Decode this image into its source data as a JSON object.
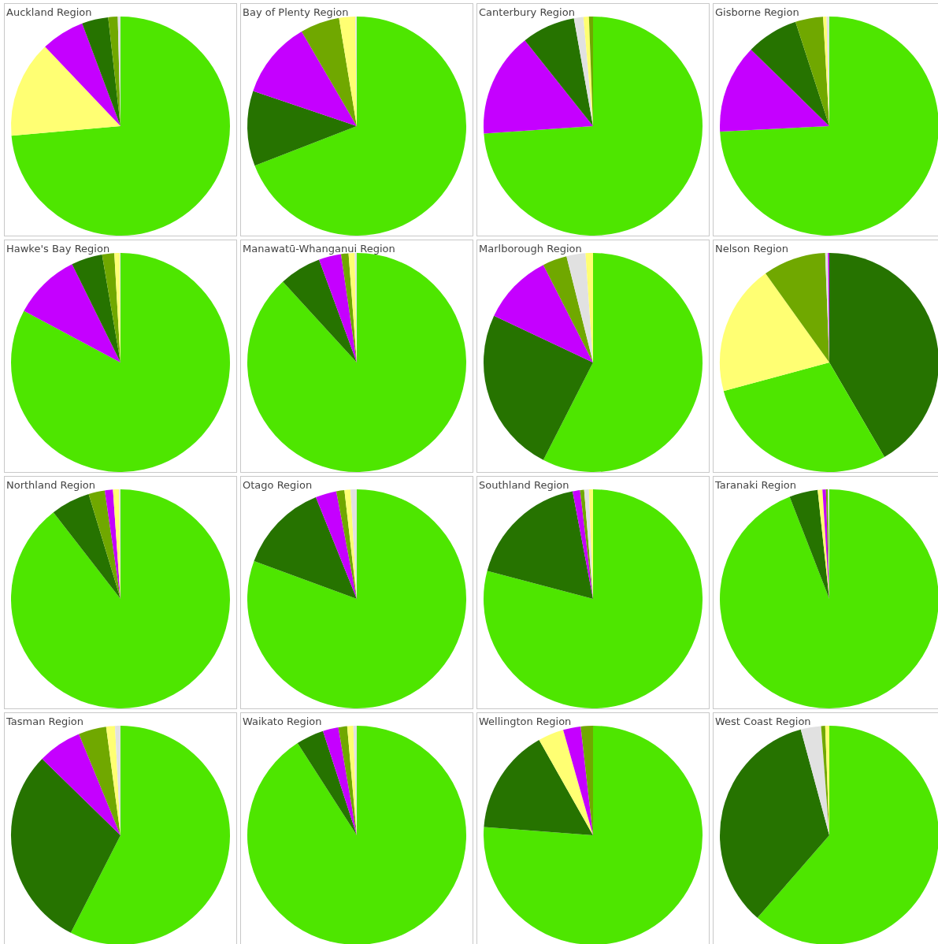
{
  "chart_data": [
    {
      "type": "pie",
      "title": "Auckland Region",
      "categories": [
        null,
        null,
        null,
        null,
        null,
        null
      ],
      "values": [
        73.6,
        14.3,
        6.4,
        3.9,
        1.4,
        0.4
      ],
      "colors": [
        "#4ee600",
        "#ffff73",
        "#c500ff",
        "#267300",
        "#70a800",
        "#e1e1e1"
      ]
    },
    {
      "type": "pie",
      "title": "Bay of Plenty Region",
      "categories": [
        null,
        null,
        null,
        null,
        null,
        null
      ],
      "values": [
        69.1,
        11.1,
        11.4,
        5.8,
        2.4,
        0.2
      ],
      "colors": [
        "#4ee600",
        "#267300",
        "#c500ff",
        "#70a800",
        "#ffff73",
        "#e1e1e1"
      ]
    },
    {
      "type": "pie",
      "title": "Canterbury Region",
      "categories": [
        null,
        null,
        null,
        null,
        null,
        null
      ],
      "values": [
        73.9,
        15.4,
        7.9,
        1.4,
        0.8,
        0.6
      ],
      "colors": [
        "#4ee600",
        "#c500ff",
        "#267300",
        "#e1e1e1",
        "#ffff73",
        "#70a800"
      ]
    },
    {
      "type": "pie",
      "title": "Gisborne Region",
      "categories": [
        null,
        null,
        null,
        null,
        null,
        null
      ],
      "values": [
        74.2,
        13.1,
        7.7,
        4.1,
        0.5,
        0.4
      ],
      "colors": [
        "#4ee600",
        "#c500ff",
        "#267300",
        "#70a800",
        "#ffff73",
        "#e1e1e1"
      ]
    },
    {
      "type": "pie",
      "title": "Hawke's Bay Region",
      "categories": [
        null,
        null,
        null,
        null,
        null,
        null
      ],
      "values": [
        82.8,
        9.9,
        4.6,
        1.8,
        0.8,
        0.1
      ],
      "colors": [
        "#4ee600",
        "#c500ff",
        "#267300",
        "#70a800",
        "#ffff73",
        "#e1e1e1"
      ]
    },
    {
      "type": "pie",
      "title": "Manawatū-Whanganui Region",
      "categories": [
        null,
        null,
        null,
        null,
        null,
        null
      ],
      "values": [
        88.2,
        6.2,
        3.3,
        1.1,
        0.9,
        0.3
      ],
      "colors": [
        "#4ee600",
        "#267300",
        "#c500ff",
        "#70a800",
        "#ffff73",
        "#e1e1e1"
      ]
    },
    {
      "type": "pie",
      "title": "Marlborough Region",
      "categories": [
        null,
        null,
        null,
        null,
        null,
        null
      ],
      "values": [
        57.5,
        24.5,
        10.5,
        3.6,
        2.8,
        1.1
      ],
      "colors": [
        "#4ee600",
        "#267300",
        "#c500ff",
        "#70a800",
        "#e1e1e1",
        "#ffff73"
      ]
    },
    {
      "type": "pie",
      "title": "Nelson Region",
      "categories": [
        null,
        null,
        null,
        null,
        null,
        null
      ],
      "values": [
        41.6,
        29.2,
        19.3,
        9.3,
        0.4,
        0.2
      ],
      "colors": [
        "#267300",
        "#4ee600",
        "#ffff73",
        "#70a800",
        "#e1e1e1",
        "#c500ff"
      ]
    },
    {
      "type": "pie",
      "title": "Northland Region",
      "categories": [
        null,
        null,
        null,
        null,
        null,
        null
      ],
      "values": [
        89.5,
        5.8,
        2.4,
        1.2,
        0.9,
        0.2
      ],
      "colors": [
        "#4ee600",
        "#267300",
        "#70a800",
        "#c500ff",
        "#ffff73",
        "#e1e1e1"
      ]
    },
    {
      "type": "pie",
      "title": "Otago Region",
      "categories": [
        null,
        null,
        null,
        null,
        null,
        null
      ],
      "values": [
        80.6,
        13.3,
        3.1,
        1.2,
        0.9,
        0.9
      ],
      "colors": [
        "#4ee600",
        "#267300",
        "#c500ff",
        "#70a800",
        "#ffff73",
        "#e1e1e1"
      ]
    },
    {
      "type": "pie",
      "title": "Southland Region",
      "categories": [
        null,
        null,
        null,
        null,
        null,
        null
      ],
      "values": [
        79.1,
        17.9,
        1.1,
        0.6,
        0.7,
        0.6
      ],
      "colors": [
        "#4ee600",
        "#267300",
        "#c500ff",
        "#70a800",
        "#e1e1e1",
        "#ffff73"
      ]
    },
    {
      "type": "pie",
      "title": "Taranaki Region",
      "categories": [
        null,
        null,
        null,
        null,
        null,
        null
      ],
      "values": [
        94.1,
        4.2,
        0.7,
        0.5,
        0.3,
        0.2
      ],
      "colors": [
        "#4ee600",
        "#267300",
        "#ffff73",
        "#c500ff",
        "#70a800",
        "#e1e1e1"
      ]
    },
    {
      "type": "pie",
      "title": "Tasman Region",
      "categories": [
        null,
        null,
        null,
        null,
        null,
        null
      ],
      "values": [
        57.5,
        29.8,
        6.5,
        4.1,
        1.3,
        0.8
      ],
      "colors": [
        "#4ee600",
        "#267300",
        "#c500ff",
        "#70a800",
        "#ffff73",
        "#e1e1e1"
      ]
    },
    {
      "type": "pie",
      "title": "Waikato Region",
      "categories": [
        null,
        null,
        null,
        null,
        null,
        null
      ],
      "values": [
        90.9,
        4.1,
        2.3,
        1.3,
        0.9,
        0.5
      ],
      "colors": [
        "#4ee600",
        "#267300",
        "#c500ff",
        "#70a800",
        "#ffff73",
        "#e1e1e1"
      ]
    },
    {
      "type": "pie",
      "title": "Wellington Region",
      "categories": [
        null,
        null,
        null,
        null,
        null
      ],
      "values": [
        76.2,
        15.6,
        3.8,
        2.6,
        1.8
      ],
      "colors": [
        "#4ee600",
        "#267300",
        "#ffff73",
        "#c500ff",
        "#70a800"
      ]
    },
    {
      "type": "pie",
      "title": "West Coast Region",
      "categories": [
        null,
        null,
        null,
        null,
        null
      ],
      "values": [
        61.4,
        34.4,
        3.0,
        0.6,
        0.6
      ],
      "colors": [
        "#4ee600",
        "#267300",
        "#e1e1e1",
        "#70a800",
        "#ffff73"
      ]
    }
  ]
}
